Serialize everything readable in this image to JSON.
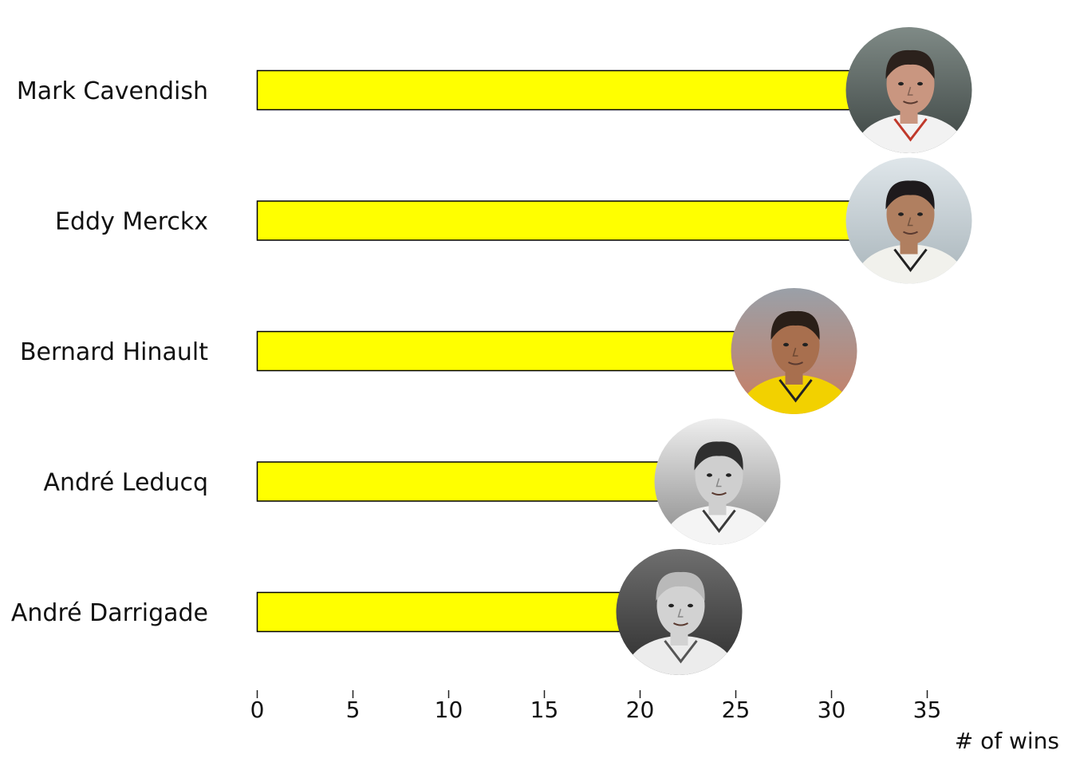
{
  "chart_data": {
    "type": "bar",
    "orientation": "horizontal",
    "categories": [
      "Mark Cavendish",
      "Eddy Merckx",
      "Bernard Hinault",
      "André Leducq",
      "André Darrigade"
    ],
    "values": [
      34,
      34,
      28,
      24,
      22
    ],
    "xlabel": "# of wins",
    "ylabel": "",
    "xlim": [
      0,
      37
    ],
    "xticks": [
      0,
      5,
      10,
      15,
      20,
      25,
      30,
      35
    ],
    "grid": false,
    "colors": {
      "bar": "#ffff00",
      "bar_stroke": "#000000"
    },
    "markers": [
      {
        "category": "Mark Cavendish",
        "portrait": "color photo, dark curly hair, sunglasses on head"
      },
      {
        "category": "Eddy Merckx",
        "portrait": "color photo, dark hair, white jersey"
      },
      {
        "category": "Bernard Hinault",
        "portrait": "color photo, yellow jersey"
      },
      {
        "category": "André Leducq",
        "portrait": "black-and-white photo, slicked hair"
      },
      {
        "category": "André Darrigade",
        "portrait": "black-and-white photo, smiling"
      }
    ]
  }
}
